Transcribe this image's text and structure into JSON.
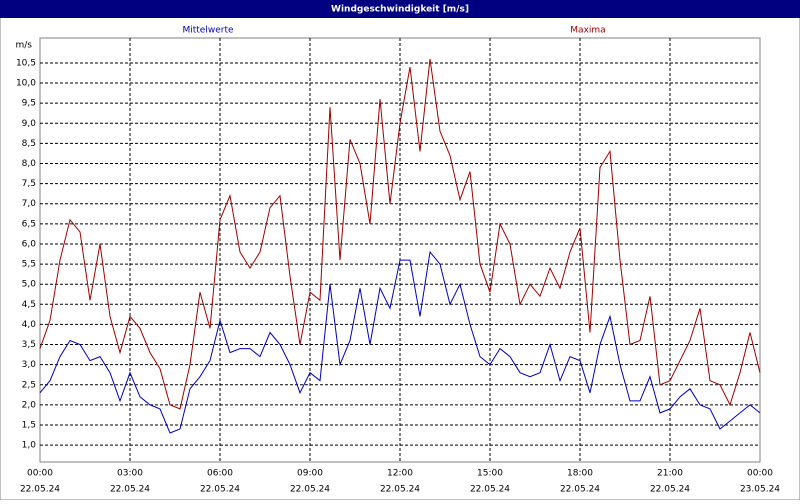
{
  "chart_data": {
    "type": "line",
    "title": "Windgeschwindigkeit [m/s]",
    "y_label": "m/s",
    "grid": true,
    "x": [
      0,
      20,
      40,
      60,
      80,
      100,
      120,
      140,
      160,
      180,
      200,
      220,
      240,
      260,
      280,
      300,
      320,
      340,
      360,
      380,
      400,
      420,
      440,
      460,
      480,
      500,
      520,
      540,
      560,
      580,
      600,
      620,
      640,
      660,
      680,
      700,
      720,
      740,
      760,
      780,
      800,
      820,
      840,
      860,
      880,
      900,
      920,
      940,
      960,
      980,
      1000,
      1020,
      1040,
      1060,
      1080,
      1100,
      1120,
      1140,
      1160,
      1180,
      1200,
      1220,
      1240,
      1260,
      1280,
      1300,
      1320,
      1340,
      1360,
      1380,
      1400,
      1420,
      1440
    ],
    "xlim": [
      0,
      1440
    ],
    "xticks": [
      {
        "value": 0,
        "label": "00:00"
      },
      {
        "value": 180,
        "label": "03:00"
      },
      {
        "value": 360,
        "label": "06:00"
      },
      {
        "value": 540,
        "label": "09:00"
      },
      {
        "value": 720,
        "label": "12:00"
      },
      {
        "value": 900,
        "label": "15:00"
      },
      {
        "value": 1080,
        "label": "18:00"
      },
      {
        "value": 1260,
        "label": "21:00"
      },
      {
        "value": 1440,
        "label": "00:00"
      }
    ],
    "xtick_dates": [
      "22.05.24",
      "22.05.24",
      "22.05.24",
      "22.05.24",
      "22.05.24",
      "22.05.24",
      "22.05.24",
      "22.05.24",
      "23.05.24"
    ],
    "ylim": [
      0.58,
      11.12
    ],
    "yticks": [
      {
        "value": 1.0,
        "label": "1,0"
      },
      {
        "value": 1.5,
        "label": "1,5"
      },
      {
        "value": 2.0,
        "label": "2,0"
      },
      {
        "value": 2.5,
        "label": "2,5"
      },
      {
        "value": 3.0,
        "label": "3,0"
      },
      {
        "value": 3.5,
        "label": "3,5"
      },
      {
        "value": 4.0,
        "label": "4,0"
      },
      {
        "value": 4.5,
        "label": "4,5"
      },
      {
        "value": 5.0,
        "label": "5,0"
      },
      {
        "value": 5.5,
        "label": "5,5"
      },
      {
        "value": 6.0,
        "label": "6,0"
      },
      {
        "value": 6.5,
        "label": "6,5"
      },
      {
        "value": 7.0,
        "label": "7,0"
      },
      {
        "value": 7.5,
        "label": "7,5"
      },
      {
        "value": 8.0,
        "label": "8,0"
      },
      {
        "value": 8.5,
        "label": "8,5"
      },
      {
        "value": 9.0,
        "label": "9,0"
      },
      {
        "value": 9.5,
        "label": "9,5"
      },
      {
        "value": 10.0,
        "label": "10,0"
      },
      {
        "value": 10.5,
        "label": "10,5"
      }
    ],
    "series": [
      {
        "name": "Mittelwerte",
        "color": "#0000c0",
        "values": [
          2.3,
          2.6,
          3.2,
          3.6,
          3.5,
          3.1,
          3.2,
          2.8,
          2.1,
          2.8,
          2.2,
          2.0,
          1.9,
          1.3,
          1.4,
          2.4,
          2.7,
          3.1,
          4.1,
          3.3,
          3.4,
          3.4,
          3.2,
          3.8,
          3.5,
          3.0,
          2.3,
          2.8,
          2.6,
          5.0,
          3.0,
          3.6,
          4.9,
          3.5,
          4.9,
          4.4,
          5.6,
          5.6,
          4.2,
          5.8,
          5.5,
          4.5,
          5.0,
          4.0,
          3.2,
          3.0,
          3.4,
          3.2,
          2.8,
          2.7,
          2.8,
          3.5,
          2.6,
          3.2,
          3.1,
          2.3,
          3.5,
          4.2,
          3.0,
          2.1,
          2.1,
          2.7,
          1.8,
          1.9,
          2.2,
          2.4,
          2.0,
          1.9,
          1.4,
          1.6,
          1.8,
          2.0,
          1.8
        ]
      },
      {
        "name": "Maxima",
        "color": "#a00000",
        "values": [
          3.4,
          4.1,
          5.6,
          6.6,
          6.3,
          4.6,
          6.0,
          4.2,
          3.3,
          4.2,
          3.9,
          3.3,
          2.9,
          2.0,
          1.9,
          3.0,
          4.8,
          3.9,
          6.6,
          7.2,
          5.8,
          5.4,
          5.8,
          6.9,
          7.2,
          5.2,
          3.5,
          4.8,
          4.6,
          9.4,
          5.6,
          8.6,
          8.0,
          6.5,
          9.6,
          7.0,
          9.0,
          10.4,
          8.3,
          10.6,
          8.8,
          8.2,
          7.1,
          7.8,
          5.5,
          4.8,
          6.5,
          6.0,
          4.5,
          5.0,
          4.7,
          5.4,
          4.9,
          5.8,
          6.4,
          3.8,
          7.9,
          8.3,
          5.6,
          3.5,
          3.6,
          4.7,
          2.5,
          2.6,
          3.1,
          3.6,
          4.4,
          2.6,
          2.5,
          2.0,
          2.8,
          3.8,
          2.8
        ]
      }
    ]
  }
}
